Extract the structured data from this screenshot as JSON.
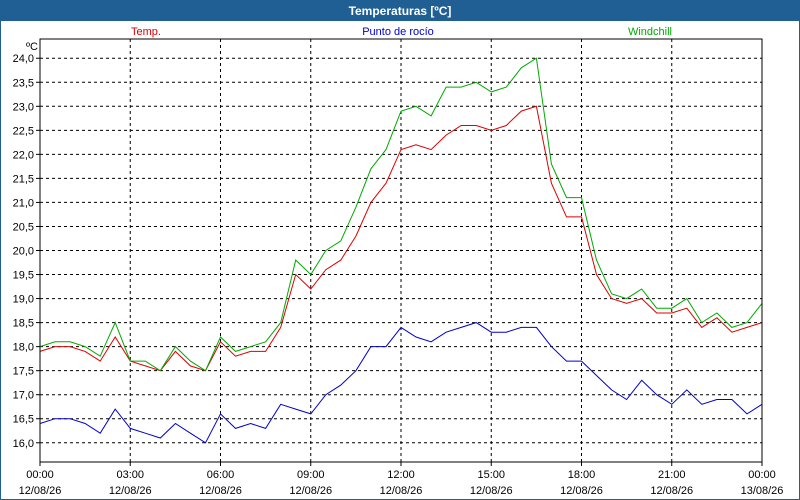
{
  "title": "Temperaturas [ºC]",
  "chart_data": {
    "type": "line",
    "ylabel": "ºC",
    "ylim": [
      15.6,
      24.4
    ],
    "yticks": [
      "16,0",
      "16,5",
      "17,0",
      "17,5",
      "18,0",
      "18,5",
      "19,0",
      "19,5",
      "20,0",
      "20,5",
      "21,0",
      "21,5",
      "22,0",
      "22,5",
      "23,0",
      "23,5",
      "24,0"
    ],
    "ytick_values": [
      16.0,
      16.5,
      17.0,
      17.5,
      18.0,
      18.5,
      19.0,
      19.5,
      20.0,
      20.5,
      21.0,
      21.5,
      22.0,
      22.5,
      23.0,
      23.5,
      24.0
    ],
    "xlim_hours": [
      0,
      24
    ],
    "xticks": [
      {
        "time": "00:00",
        "date": "12/08/26"
      },
      {
        "time": "03:00",
        "date": "12/08/26"
      },
      {
        "time": "06:00",
        "date": "12/08/26"
      },
      {
        "time": "09:00",
        "date": "12/08/26"
      },
      {
        "time": "12:00",
        "date": "12/08/26"
      },
      {
        "time": "15:00",
        "date": "12/08/26"
      },
      {
        "time": "18:00",
        "date": "12/08/26"
      },
      {
        "time": "21:00",
        "date": "12/08/26"
      },
      {
        "time": "00:00",
        "date": "13/08/26"
      }
    ],
    "grid": true,
    "legend_position": "top",
    "x_hours": [
      0,
      0.5,
      1,
      1.5,
      2,
      2.5,
      3,
      3.5,
      4,
      4.5,
      5,
      5.5,
      6,
      6.5,
      7,
      7.5,
      8,
      8.5,
      9,
      9.5,
      10,
      10.5,
      11,
      11.5,
      12,
      12.5,
      13,
      13.5,
      14,
      14.5,
      15,
      15.5,
      16,
      16.5,
      17,
      17.5,
      18,
      18.5,
      19,
      19.5,
      20,
      20.5,
      21,
      21.5,
      22,
      22.5,
      23,
      23.5,
      24
    ],
    "series": [
      {
        "name": "Temp.",
        "color": "#dd0000",
        "values": [
          17.9,
          18.0,
          18.0,
          17.9,
          17.7,
          18.2,
          17.7,
          17.6,
          17.5,
          17.9,
          17.6,
          17.5,
          18.1,
          17.8,
          17.9,
          17.9,
          18.4,
          19.5,
          19.2,
          19.6,
          19.8,
          20.3,
          21.0,
          21.4,
          22.1,
          22.2,
          22.1,
          22.4,
          22.6,
          22.6,
          22.5,
          22.6,
          22.9,
          23.0,
          21.4,
          20.7,
          20.7,
          19.5,
          19.0,
          18.9,
          19.0,
          18.7,
          18.7,
          18.8,
          18.4,
          18.6,
          18.3,
          18.4,
          18.5
        ]
      },
      {
        "name": "Punto de rocío",
        "color": "#0000cc",
        "values": [
          16.4,
          16.5,
          16.5,
          16.4,
          16.2,
          16.7,
          16.3,
          16.2,
          16.1,
          16.4,
          16.2,
          16.0,
          16.6,
          16.3,
          16.4,
          16.3,
          16.8,
          16.7,
          16.6,
          17.0,
          17.2,
          17.5,
          18.0,
          18.0,
          18.4,
          18.2,
          18.1,
          18.3,
          18.4,
          18.5,
          18.3,
          18.3,
          18.4,
          18.4,
          18.0,
          17.7,
          17.7,
          17.4,
          17.1,
          16.9,
          17.3,
          17.0,
          16.8,
          17.1,
          16.8,
          16.9,
          16.9,
          16.6,
          16.8
        ]
      },
      {
        "name": "Windchill",
        "color": "#00aa00",
        "values": [
          18.0,
          18.1,
          18.1,
          18.0,
          17.8,
          18.5,
          17.7,
          17.7,
          17.5,
          18.0,
          17.7,
          17.5,
          18.2,
          17.9,
          18.0,
          18.1,
          18.5,
          19.8,
          19.5,
          20.0,
          20.2,
          20.9,
          21.7,
          22.1,
          22.9,
          23.0,
          22.8,
          23.4,
          23.4,
          23.5,
          23.3,
          23.4,
          23.8,
          24.0,
          21.8,
          21.1,
          21.1,
          19.8,
          19.1,
          19.0,
          19.2,
          18.8,
          18.8,
          19.0,
          18.5,
          18.7,
          18.4,
          18.5,
          18.9
        ]
      }
    ]
  }
}
